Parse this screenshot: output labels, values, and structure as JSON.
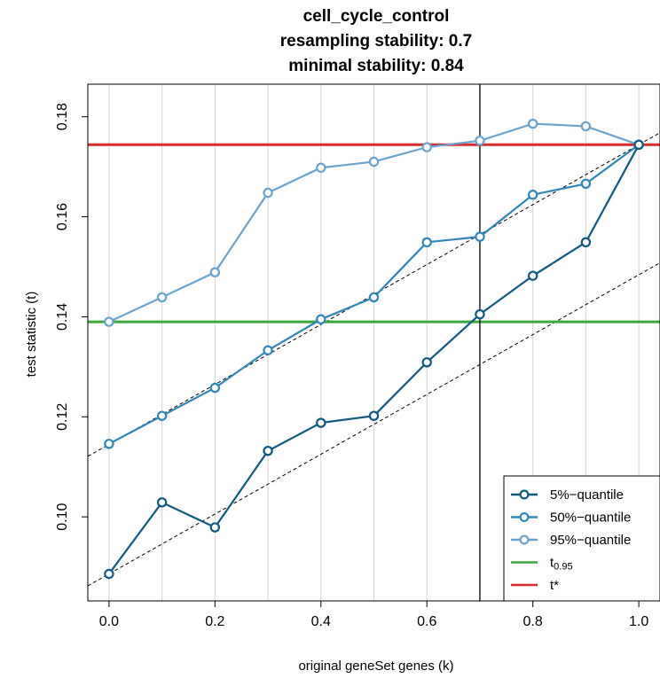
{
  "chart_data": {
    "type": "line",
    "title": "cell_cycle_control",
    "subtitle_lines": [
      "resampling stability: 0.7",
      "minimal stability: 0.84"
    ],
    "xlabel": "original geneSet genes (k)",
    "ylabel": "test statistic (t)",
    "xlim": [
      -0.04,
      1.04
    ],
    "ylim": [
      0.0832,
      0.1865
    ],
    "x_ticks": [
      0.0,
      0.2,
      0.4,
      0.6,
      0.8,
      1.0
    ],
    "x_tick_labels": [
      "0.0",
      "0.2",
      "0.4",
      "0.6",
      "0.8",
      "1.0"
    ],
    "y_ticks": [
      0.1,
      0.12,
      0.14,
      0.16,
      0.18
    ],
    "y_tick_labels": [
      "0.10",
      "0.12",
      "0.14",
      "0.16",
      "0.18"
    ],
    "vertical_gridlines": [
      0.0,
      0.1,
      0.2,
      0.3,
      0.4,
      0.5,
      0.6,
      0.7,
      0.8,
      0.9,
      1.0
    ],
    "x": [
      0.0,
      0.1,
      0.2,
      0.3,
      0.4,
      0.5,
      0.6,
      0.7,
      0.8,
      0.9,
      1.0
    ],
    "series": [
      {
        "name": "5%−quantile",
        "color": "#0f5a80",
        "values": [
          0.0886,
          0.1029,
          0.0979,
          0.1132,
          0.1188,
          0.1202,
          0.1309,
          0.1405,
          0.1482,
          0.1549,
          0.1744
        ]
      },
      {
        "name": "50%−quantile",
        "color": "#2f86b8",
        "values": [
          0.1146,
          0.1202,
          0.1258,
          0.1333,
          0.1395,
          0.1439,
          0.1549,
          0.156,
          0.1644,
          0.1666,
          0.1744
        ]
      },
      {
        "name": "95%−quantile",
        "color": "#6ba3cf",
        "values": [
          0.139,
          0.1439,
          0.1489,
          0.1648,
          0.1698,
          0.171,
          0.1739,
          0.1752,
          0.1786,
          0.1781,
          0.1744
        ]
      }
    ],
    "reference_lines": {
      "t_095": {
        "label": "t",
        "label_sub": "0.95",
        "value": 0.139,
        "color": "#3aa83a"
      },
      "t_star": {
        "label": "t*",
        "value": 0.1744,
        "color": "#d72b2b"
      },
      "stability_x": {
        "value": 0.7,
        "color": "#000000"
      }
    },
    "dashed_lines": [
      {
        "from": [
          0.0,
          0.1145
        ],
        "to": [
          1.0,
          0.1744
        ]
      },
      {
        "from": [
          0.0,
          0.0886
        ],
        "to": [
          1.0,
          0.1484
        ]
      }
    ],
    "legend": {
      "position": "bottom-right",
      "entries": [
        "5%−quantile",
        "50%−quantile",
        "95%−quantile",
        "t0.95",
        "t*"
      ]
    }
  }
}
